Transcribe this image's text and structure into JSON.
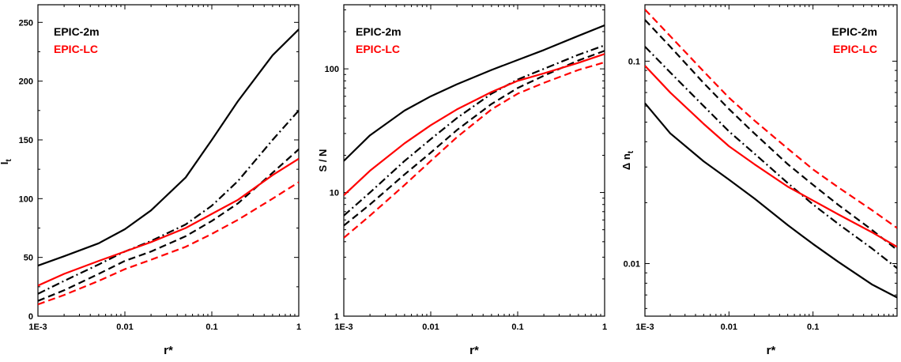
{
  "chart_data": [
    {
      "type": "line",
      "xscale": "log",
      "yscale": "linear",
      "xlim": [
        0.001,
        1
      ],
      "ylim": [
        0,
        265
      ],
      "xticks": [
        0.001,
        0.01,
        0.1,
        1
      ],
      "xtick_labels": [
        "1E-3",
        "0.01",
        "0.1",
        "1"
      ],
      "yticks": [
        0,
        50,
        100,
        150,
        200,
        250
      ],
      "ytick_labels": [
        "0",
        "50",
        "100",
        "150",
        "200",
        "250"
      ],
      "xlabel": "r*",
      "ylabel": "I",
      "ylabel_sub": "t",
      "ylabel_sup": "*",
      "legend": [
        {
          "label": "EPIC-2m",
          "color": "#000000"
        },
        {
          "label": "EPIC-LC",
          "color": "#ff0000"
        }
      ],
      "grid": false,
      "legend_position": "top-left",
      "series": [
        {
          "color": "#000000",
          "dash": "solid",
          "x": [
            0.001,
            0.002,
            0.005,
            0.01,
            0.02,
            0.05,
            0.1,
            0.2,
            0.5,
            1
          ],
          "y": [
            43,
            51,
            62,
            74,
            90,
            118,
            150,
            183,
            222,
            244
          ]
        },
        {
          "color": "#000000",
          "dash": "dashdot",
          "x": [
            0.001,
            0.002,
            0.005,
            0.01,
            0.02,
            0.05,
            0.1,
            0.2,
            0.5,
            1
          ],
          "y": [
            19,
            30,
            44,
            55,
            64,
            78,
            94,
            115,
            150,
            175
          ]
        },
        {
          "color": "#000000",
          "dash": "dash",
          "x": [
            0.001,
            0.002,
            0.005,
            0.01,
            0.02,
            0.05,
            0.1,
            0.2,
            0.5,
            1
          ],
          "y": [
            13,
            22,
            36,
            47,
            55,
            68,
            81,
            96,
            122,
            142
          ]
        },
        {
          "color": "#ff0000",
          "dash": "solid",
          "x": [
            0.001,
            0.002,
            0.005,
            0.01,
            0.02,
            0.05,
            0.1,
            0.2,
            0.5,
            1
          ],
          "y": [
            26,
            36,
            47,
            55,
            63,
            75,
            87,
            99,
            120,
            134
          ]
        },
        {
          "color": "#ff0000",
          "dash": "dash",
          "x": [
            0.001,
            0.002,
            0.005,
            0.01,
            0.02,
            0.05,
            0.1,
            0.2,
            0.5,
            1
          ],
          "y": [
            10,
            18,
            30,
            40,
            48,
            59,
            70,
            82,
            100,
            114
          ]
        }
      ]
    },
    {
      "type": "line",
      "xscale": "log",
      "yscale": "log",
      "xlim": [
        0.001,
        1
      ],
      "ylim": [
        1,
        330
      ],
      "xticks": [
        0.001,
        0.01,
        0.1,
        1
      ],
      "xtick_labels": [
        "1E-3",
        "0.01",
        "0.1",
        "1"
      ],
      "yticks": [
        1,
        10,
        100
      ],
      "ytick_labels": [
        "1",
        "10",
        "100"
      ],
      "xlabel": "r*",
      "ylabel": "S / N",
      "legend": [
        {
          "label": "EPIC-2m",
          "color": "#000000"
        },
        {
          "label": "EPIC-LC",
          "color": "#ff0000"
        }
      ],
      "grid": false,
      "legend_position": "top-left",
      "series": [
        {
          "color": "#000000",
          "dash": "solid",
          "x": [
            0.001,
            0.002,
            0.005,
            0.01,
            0.02,
            0.05,
            0.1,
            0.2,
            0.5,
            1
          ],
          "y": [
            18,
            29,
            46,
            60,
            75,
            98,
            118,
            142,
            185,
            225
          ]
        },
        {
          "color": "#000000",
          "dash": "dashdot",
          "x": [
            0.001,
            0.002,
            0.005,
            0.01,
            0.02,
            0.05,
            0.1,
            0.2,
            0.5,
            1
          ],
          "y": [
            6.5,
            10,
            18,
            27,
            40,
            63,
            82,
            100,
            130,
            155
          ]
        },
        {
          "color": "#000000",
          "dash": "dash",
          "x": [
            0.001,
            0.002,
            0.005,
            0.01,
            0.02,
            0.05,
            0.1,
            0.2,
            0.5,
            1
          ],
          "y": [
            5.4,
            8,
            14,
            21,
            32,
            52,
            70,
            88,
            117,
            140
          ]
        },
        {
          "color": "#ff0000",
          "dash": "solid",
          "x": [
            0.001,
            0.002,
            0.005,
            0.01,
            0.02,
            0.05,
            0.1,
            0.2,
            0.5,
            1
          ],
          "y": [
            9.5,
            15,
            25,
            35,
            47,
            65,
            80,
            92,
            112,
            132
          ]
        },
        {
          "color": "#ff0000",
          "dash": "dash",
          "x": [
            0.001,
            0.002,
            0.005,
            0.01,
            0.02,
            0.05,
            0.1,
            0.2,
            0.5,
            1
          ],
          "y": [
            4.3,
            6.5,
            11.5,
            18,
            28,
            47,
            63,
            77,
            98,
            113
          ]
        }
      ]
    },
    {
      "type": "line",
      "xscale": "log",
      "yscale": "log",
      "xlim": [
        0.001,
        1
      ],
      "ylim": [
        0.0055,
        0.19
      ],
      "xticks": [
        0.001,
        0.01,
        0.1
      ],
      "xtick_labels": [
        "1E-3",
        "0.01",
        "0.1"
      ],
      "yticks": [
        0.01,
        0.1
      ],
      "ytick_labels": [
        "0.01",
        "0.1"
      ],
      "xlabel": "r*",
      "ylabel": "Δ n",
      "ylabel_sub": "t",
      "legend": [
        {
          "label": "EPIC-2m",
          "color": "#000000"
        },
        {
          "label": "EPIC-LC",
          "color": "#ff0000"
        }
      ],
      "grid": false,
      "legend_position": "top-right",
      "series": [
        {
          "color": "#000000",
          "dash": "solid",
          "x": [
            0.001,
            0.002,
            0.005,
            0.01,
            0.02,
            0.05,
            0.1,
            0.2,
            0.5,
            1
          ],
          "y": [
            0.062,
            0.044,
            0.032,
            0.026,
            0.021,
            0.0155,
            0.0125,
            0.0102,
            0.0079,
            0.0068
          ]
        },
        {
          "color": "#000000",
          "dash": "dashdot",
          "x": [
            0.001,
            0.002,
            0.005,
            0.01,
            0.02,
            0.05,
            0.1,
            0.2,
            0.5,
            1
          ],
          "y": [
            0.118,
            0.088,
            0.06,
            0.045,
            0.035,
            0.025,
            0.0196,
            0.0157,
            0.0119,
            0.0095
          ]
        },
        {
          "color": "#000000",
          "dash": "dash",
          "x": [
            0.001,
            0.002,
            0.005,
            0.01,
            0.02,
            0.05,
            0.1,
            0.2,
            0.5,
            1
          ],
          "y": [
            0.16,
            0.118,
            0.078,
            0.058,
            0.044,
            0.031,
            0.0245,
            0.0195,
            0.0147,
            0.0117
          ]
        },
        {
          "color": "#ff0000",
          "dash": "solid",
          "x": [
            0.001,
            0.002,
            0.005,
            0.01,
            0.02,
            0.05,
            0.1,
            0.2,
            0.5,
            1
          ],
          "y": [
            0.095,
            0.07,
            0.049,
            0.038,
            0.031,
            0.024,
            0.0205,
            0.0175,
            0.0143,
            0.0121
          ]
        },
        {
          "color": "#ff0000",
          "dash": "dash",
          "x": [
            0.001,
            0.002,
            0.005,
            0.01,
            0.02,
            0.05,
            0.1,
            0.2,
            0.5,
            1
          ],
          "y": [
            0.18,
            0.133,
            0.089,
            0.066,
            0.051,
            0.037,
            0.0292,
            0.0238,
            0.0184,
            0.015
          ]
        }
      ]
    }
  ]
}
